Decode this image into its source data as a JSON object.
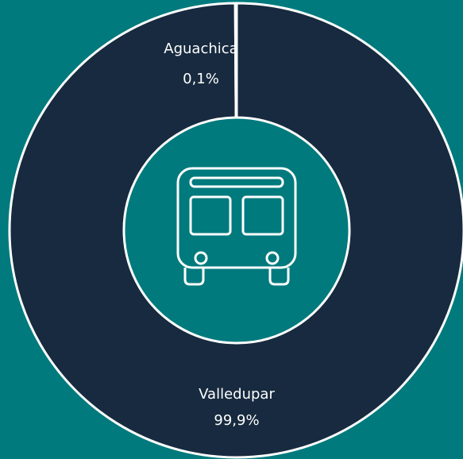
{
  "chart_data": {
    "type": "donut",
    "categories": [
      "Valledupar",
      "Aguachica"
    ],
    "values": [
      99.9,
      0.1
    ],
    "value_labels": [
      "99,9%",
      "0,1%"
    ],
    "colors": [
      "#172a3f",
      "#172a3f"
    ]
  }
}
